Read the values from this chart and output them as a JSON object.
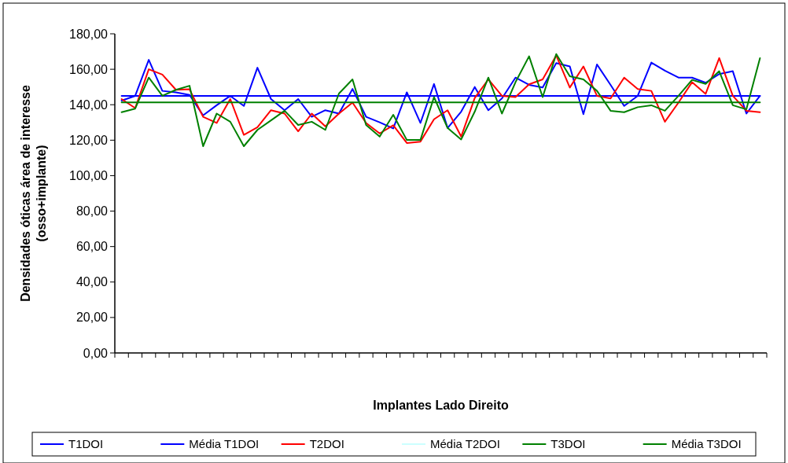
{
  "chart_data": {
    "type": "line",
    "xlabel": "Implantes Lado Direito",
    "ylabel": "Densidades óticas área de interesse\n(osso+implante)",
    "categories": [
      null,
      null,
      null,
      null,
      null,
      null,
      null,
      null,
      null,
      null,
      null,
      null,
      null,
      null,
      null,
      null,
      null,
      null,
      null,
      null,
      null,
      null,
      null,
      null,
      null,
      null,
      null,
      null,
      null,
      null,
      null,
      null,
      null,
      null,
      null,
      null,
      null,
      null,
      null,
      null,
      null,
      null,
      null,
      null,
      null,
      null,
      null,
      null
    ],
    "ylim": [
      0,
      180
    ],
    "yticks": [
      {
        "value": 0,
        "label": "0,00"
      },
      {
        "value": 20,
        "label": "20,00"
      },
      {
        "value": 40,
        "label": "40,00"
      },
      {
        "value": 60,
        "label": "60,00"
      },
      {
        "value": 80,
        "label": "80,00"
      },
      {
        "value": 100,
        "label": "100,00"
      },
      {
        "value": 120,
        "label": "120,00"
      },
      {
        "value": 140,
        "label": "140,00"
      },
      {
        "value": 160,
        "label": "160,00"
      },
      {
        "value": 180,
        "label": "180,00"
      }
    ],
    "grid": false,
    "legend": "bottom",
    "marker": "none",
    "line_style": "solid",
    "series": [
      {
        "name": "T1DOI",
        "color": "#0000ff",
        "values": [
          142.3,
          145.0,
          165.3,
          147.8,
          147.0,
          145.5,
          134.0,
          139.7,
          145.0,
          139.3,
          160.9,
          143.2,
          136.9,
          143.2,
          133.2,
          136.9,
          135.0,
          148.9,
          133.2,
          130.1,
          126.6,
          147.0,
          129.7,
          151.7,
          126.9,
          136.1,
          150.0,
          136.9,
          143.5,
          155.3,
          151.2,
          149.7,
          163.5,
          161.6,
          134.7,
          162.7,
          151.2,
          139.3,
          145.0,
          163.8,
          159.2,
          155.3,
          155.3,
          152.4,
          157.3,
          158.9,
          135.0,
          145.0
        ]
      },
      {
        "name": "Média T1DOI",
        "color": "#0000ff",
        "values": [
          145.0,
          145.0,
          145.0,
          145.0,
          145.0,
          145.0,
          145.0,
          145.0,
          145.0,
          145.0,
          145.0,
          145.0,
          145.0,
          145.0,
          145.0,
          145.0,
          145.0,
          145.0,
          145.0,
          145.0,
          145.0,
          145.0,
          145.0,
          145.0,
          145.0,
          145.0,
          145.0,
          145.0,
          145.0,
          145.0,
          145.0,
          145.0,
          145.0,
          145.0,
          145.0,
          145.0,
          145.0,
          145.0,
          145.0,
          145.0,
          145.0,
          145.0,
          145.0,
          145.0,
          145.0,
          145.0,
          145.0,
          145.0
        ]
      },
      {
        "name": "T2DOI",
        "color": "#ff0000",
        "values": [
          143.2,
          138.1,
          160.0,
          157.0,
          148.4,
          148.7,
          133.2,
          129.7,
          143.2,
          123.0,
          127.3,
          136.9,
          135.0,
          125.0,
          135.0,
          127.8,
          135.0,
          141.2,
          129.7,
          123.8,
          128.4,
          118.4,
          119.2,
          131.8,
          136.9,
          122.0,
          143.8,
          154.3,
          145.0,
          144.3,
          151.5,
          154.3,
          167.8,
          149.7,
          161.6,
          145.0,
          143.5,
          155.3,
          148.9,
          147.8,
          130.4,
          141.2,
          152.7,
          146.1,
          166.3,
          145.0,
          136.6,
          135.8
        ]
      },
      {
        "name": "Média T2DOI",
        "color": "#ccffff",
        "values": [
          null,
          null,
          null,
          null,
          null,
          null,
          null,
          null,
          null,
          null,
          null,
          null,
          null,
          null,
          null,
          null,
          null,
          null,
          null,
          null,
          null,
          null,
          null,
          null,
          null,
          null,
          null,
          null,
          null,
          null,
          null,
          null,
          null,
          null,
          null,
          null,
          null,
          null,
          null,
          null,
          null,
          null,
          null,
          null,
          null,
          null,
          null,
          null
        ]
      },
      {
        "name": "T3DOI",
        "color": "#008000",
        "values": [
          135.8,
          137.8,
          155.3,
          145.0,
          148.4,
          150.7,
          116.6,
          135.0,
          130.4,
          116.6,
          125.8,
          131.2,
          136.6,
          128.6,
          130.4,
          125.8,
          146.3,
          154.3,
          128.6,
          122.0,
          134.3,
          120.1,
          120.1,
          144.3,
          126.9,
          120.4,
          136.1,
          155.3,
          135.0,
          152.7,
          167.3,
          144.3,
          168.6,
          156.1,
          154.3,
          147.8,
          136.6,
          135.8,
          138.6,
          139.7,
          136.6,
          145.0,
          154.0,
          151.7,
          158.9,
          139.7,
          137.4,
          166.3
        ]
      },
      {
        "name": "Média T3DOI",
        "color": "#008000",
        "values": [
          141.3,
          141.3,
          141.3,
          141.3,
          141.3,
          141.3,
          141.3,
          141.3,
          141.3,
          141.3,
          141.3,
          141.3,
          141.3,
          141.3,
          141.3,
          141.3,
          141.3,
          141.3,
          141.3,
          141.3,
          141.3,
          141.3,
          141.3,
          141.3,
          141.3,
          141.3,
          141.3,
          141.3,
          141.3,
          141.3,
          141.3,
          141.3,
          141.3,
          141.3,
          141.3,
          141.3,
          141.3,
          141.3,
          141.3,
          141.3,
          141.3,
          141.3,
          141.3,
          141.3,
          141.3,
          141.3,
          141.3,
          141.3
        ]
      }
    ]
  }
}
